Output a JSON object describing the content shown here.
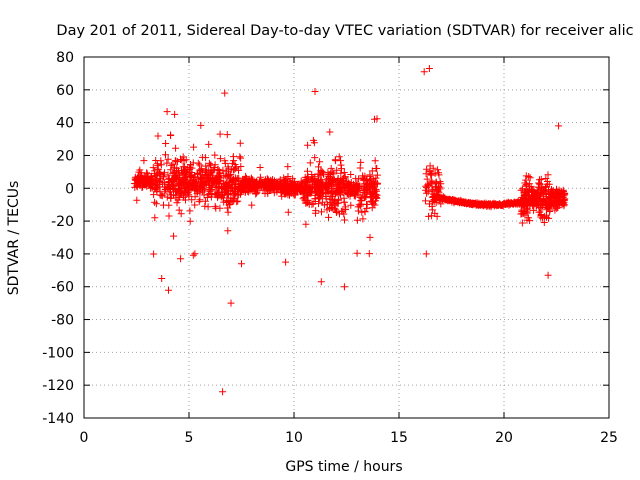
{
  "chart_data": {
    "type": "scatter",
    "title": "Day 201 of 2011, Sidereal Day-to-day VTEC variation (SDTVAR) for receiver alic",
    "xlabel": "GPS time / hours",
    "ylabel": "SDTVAR / TECUs",
    "xlim": [
      0,
      25
    ],
    "ylim": [
      -140,
      80
    ],
    "x_ticks": [
      0,
      5,
      10,
      15,
      20,
      25
    ],
    "y_ticks": [
      -140,
      -120,
      -100,
      -80,
      -60,
      -40,
      -20,
      0,
      20,
      40,
      60,
      80
    ],
    "grid": true,
    "marker": "+",
    "series_color": "#ff0000",
    "segments": [
      {
        "name": "dense-scatter",
        "x_start": 2.4,
        "x_end": 14.0
      },
      {
        "name": "late-scatter",
        "x_start": 16.2,
        "x_end": 17.0
      },
      {
        "name": "smooth-curve",
        "x_start": 16.6,
        "x_end": 21.0
      },
      {
        "name": "end-scatter",
        "x_start": 20.8,
        "x_end": 22.9
      }
    ],
    "outliers": [
      {
        "x": 6.6,
        "y": -124
      },
      {
        "x": 7.0,
        "y": -70
      },
      {
        "x": 3.7,
        "y": -55
      },
      {
        "x": 11.3,
        "y": -57
      },
      {
        "x": 12.4,
        "y": -60
      },
      {
        "x": 22.1,
        "y": -53
      },
      {
        "x": 16.2,
        "y": 71
      },
      {
        "x": 16.45,
        "y": 73
      },
      {
        "x": 11.0,
        "y": 59
      },
      {
        "x": 6.7,
        "y": 58
      },
      {
        "x": 22.6,
        "y": 38
      },
      {
        "x": 16.3,
        "y": -40
      },
      {
        "x": 9.6,
        "y": -45
      },
      {
        "x": 4.6,
        "y": -43
      },
      {
        "x": 7.5,
        "y": -46
      }
    ]
  }
}
